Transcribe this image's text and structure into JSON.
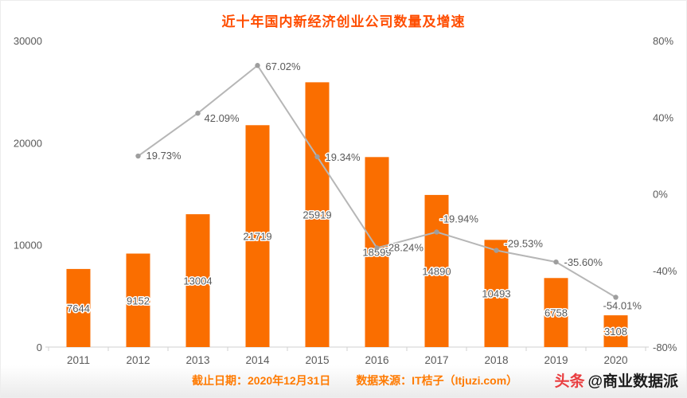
{
  "chart": {
    "title": "近十年国内新经济创业公司数量及增速",
    "footer": {
      "date_label": "截止日期：2020年12月31日",
      "source_label": "数据来源：IT桔子（Itjuzi.com）"
    },
    "watermark": {
      "logo": "头条",
      "account": "@商业数据派"
    },
    "colors": {
      "bar": "#FA6E00",
      "line": "#b6b6b6",
      "marker": "#9e9e9e",
      "title": "#FF4D00",
      "axis_text": "#595959",
      "label_text": "#595959",
      "axis_line": "#d0d0d0",
      "footer_text": "#FF7A00",
      "watermark_red": "#E93E40",
      "watermark_black": "#1b1b1b"
    }
  },
  "chart_data": {
    "type": "bar+line",
    "title": "近十年国内新经济创业公司数量及增速",
    "categories": [
      "2011",
      "2012",
      "2013",
      "2014",
      "2015",
      "2016",
      "2017",
      "2018",
      "2019",
      "2020"
    ],
    "series": [
      {
        "name": "新经济创业公司数量",
        "type": "bar",
        "yaxis": "left",
        "values": [
          7644,
          9152,
          13004,
          21719,
          25919,
          18599,
          14890,
          10493,
          6758,
          3108
        ],
        "labels": [
          "7644",
          "9152",
          "13004",
          "21719",
          "25919",
          "18599",
          "14890",
          "10493",
          "6758",
          "3108"
        ]
      },
      {
        "name": "增速",
        "type": "line",
        "yaxis": "right",
        "values": [
          null,
          19.73,
          42.09,
          67.02,
          19.34,
          -28.24,
          -19.94,
          -29.53,
          -35.6,
          -54.01
        ],
        "labels": [
          "",
          "19.73%",
          "42.09%",
          "67.02%",
          "19.34%",
          "-28.24%",
          "-19.94%",
          "-29.53%",
          "-35.60%",
          "-54.01%"
        ]
      }
    ],
    "left_axis": {
      "min": 0,
      "max": 30000,
      "ticks": [
        {
          "value": 0,
          "label": "0"
        },
        {
          "value": 10000,
          "label": "10000"
        },
        {
          "value": 20000,
          "label": "20000"
        },
        {
          "value": 30000,
          "label": "30000"
        }
      ]
    },
    "right_axis": {
      "min": -80,
      "max": 80,
      "ticks": [
        {
          "value": -80,
          "label": "-80%"
        },
        {
          "value": -40,
          "label": "-40%"
        },
        {
          "value": 0,
          "label": "0%"
        },
        {
          "value": 40,
          "label": "40%"
        },
        {
          "value": 80,
          "label": "80%"
        }
      ]
    },
    "grid": false,
    "legend": "none"
  }
}
